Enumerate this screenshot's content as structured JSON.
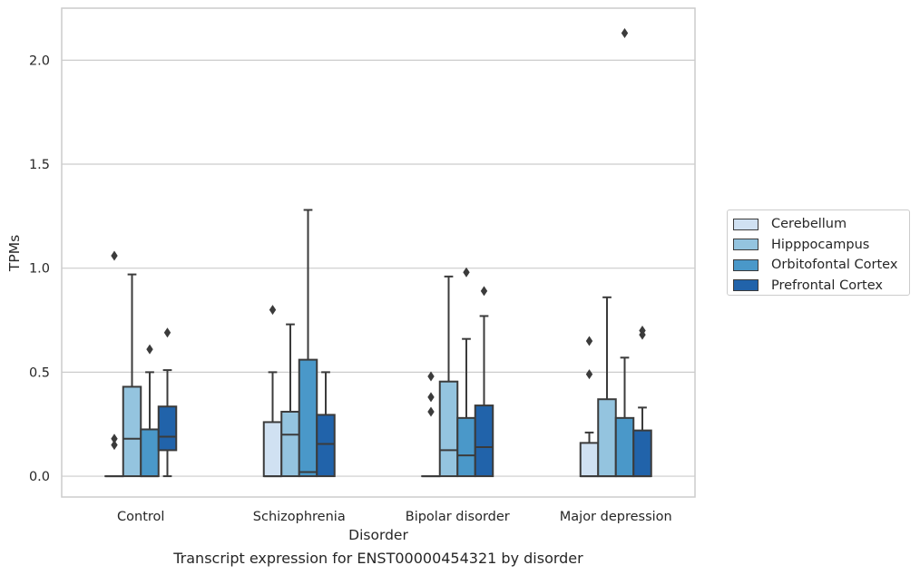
{
  "caption": "Transcript expression for ENST00000454321 by disorder",
  "chart_data": {
    "type": "boxplot",
    "title": "",
    "xlabel": "Disorder",
    "ylabel": "TPMs",
    "categories": [
      "Control",
      "Schizophrenia",
      "Bipolar disorder",
      "Major depression"
    ],
    "ylim": [
      -0.1,
      2.25
    ],
    "yticks": [
      0.0,
      0.5,
      1.0,
      1.5,
      2.0
    ],
    "ytick_labels": [
      "0.0",
      "0.5",
      "1.0",
      "1.5",
      "2.0"
    ],
    "grid": "horizontal",
    "legend_position": "right",
    "series": [
      {
        "name": "Cerebellum",
        "color": "#d0e1f2",
        "boxes": [
          {
            "q1": 0.0,
            "median": 0.0,
            "q3": 0.0,
            "whisker_low": 0.0,
            "whisker_high": 0.0,
            "outliers": [
              0.15,
              0.18,
              1.06
            ]
          },
          {
            "q1": 0.0,
            "median": 0.0,
            "q3": 0.26,
            "whisker_low": 0.0,
            "whisker_high": 0.5,
            "outliers": [
              0.8
            ]
          },
          {
            "q1": 0.0,
            "median": 0.0,
            "q3": 0.0,
            "whisker_low": 0.0,
            "whisker_high": 0.0,
            "outliers": [
              0.31,
              0.38,
              0.48
            ]
          },
          {
            "q1": 0.0,
            "median": 0.0,
            "q3": 0.16,
            "whisker_low": 0.0,
            "whisker_high": 0.21,
            "outliers": [
              0.49,
              0.65
            ]
          }
        ]
      },
      {
        "name": "Hipppocampus",
        "color": "#94c4df",
        "boxes": [
          {
            "q1": 0.0,
            "median": 0.18,
            "q3": 0.43,
            "whisker_low": 0.0,
            "whisker_high": 0.97,
            "outliers": []
          },
          {
            "q1": 0.0,
            "median": 0.2,
            "q3": 0.31,
            "whisker_low": 0.0,
            "whisker_high": 0.73,
            "outliers": []
          },
          {
            "q1": 0.0,
            "median": 0.125,
            "q3": 0.455,
            "whisker_low": 0.0,
            "whisker_high": 0.96,
            "outliers": []
          },
          {
            "q1": 0.0,
            "median": 0.0,
            "q3": 0.37,
            "whisker_low": 0.0,
            "whisker_high": 0.86,
            "outliers": []
          }
        ]
      },
      {
        "name": "Orbitofontal Cortex",
        "color": "#4a98c9",
        "boxes": [
          {
            "q1": 0.0,
            "median": 0.0,
            "q3": 0.225,
            "whisker_low": 0.0,
            "whisker_high": 0.5,
            "outliers": [
              0.61
            ]
          },
          {
            "q1": 0.0,
            "median": 0.02,
            "q3": 0.56,
            "whisker_low": 0.0,
            "whisker_high": 1.28,
            "outliers": []
          },
          {
            "q1": 0.0,
            "median": 0.1,
            "q3": 0.28,
            "whisker_low": 0.0,
            "whisker_high": 0.66,
            "outliers": [
              0.98
            ]
          },
          {
            "q1": 0.0,
            "median": 0.0,
            "q3": 0.28,
            "whisker_low": 0.0,
            "whisker_high": 0.57,
            "outliers": [
              2.13
            ]
          }
        ]
      },
      {
        "name": "Prefrontal Cortex",
        "color": "#2163aa",
        "boxes": [
          {
            "q1": 0.125,
            "median": 0.19,
            "q3": 0.335,
            "whisker_low": 0.0,
            "whisker_high": 0.51,
            "outliers": [
              0.69
            ]
          },
          {
            "q1": 0.0,
            "median": 0.155,
            "q3": 0.295,
            "whisker_low": 0.0,
            "whisker_high": 0.5,
            "outliers": []
          },
          {
            "q1": 0.0,
            "median": 0.14,
            "q3": 0.34,
            "whisker_low": 0.0,
            "whisker_high": 0.77,
            "outliers": [
              0.89
            ]
          },
          {
            "q1": 0.0,
            "median": 0.0,
            "q3": 0.22,
            "whisker_low": 0.0,
            "whisker_high": 0.33,
            "outliers": [
              0.68,
              0.7
            ]
          }
        ]
      }
    ]
  }
}
